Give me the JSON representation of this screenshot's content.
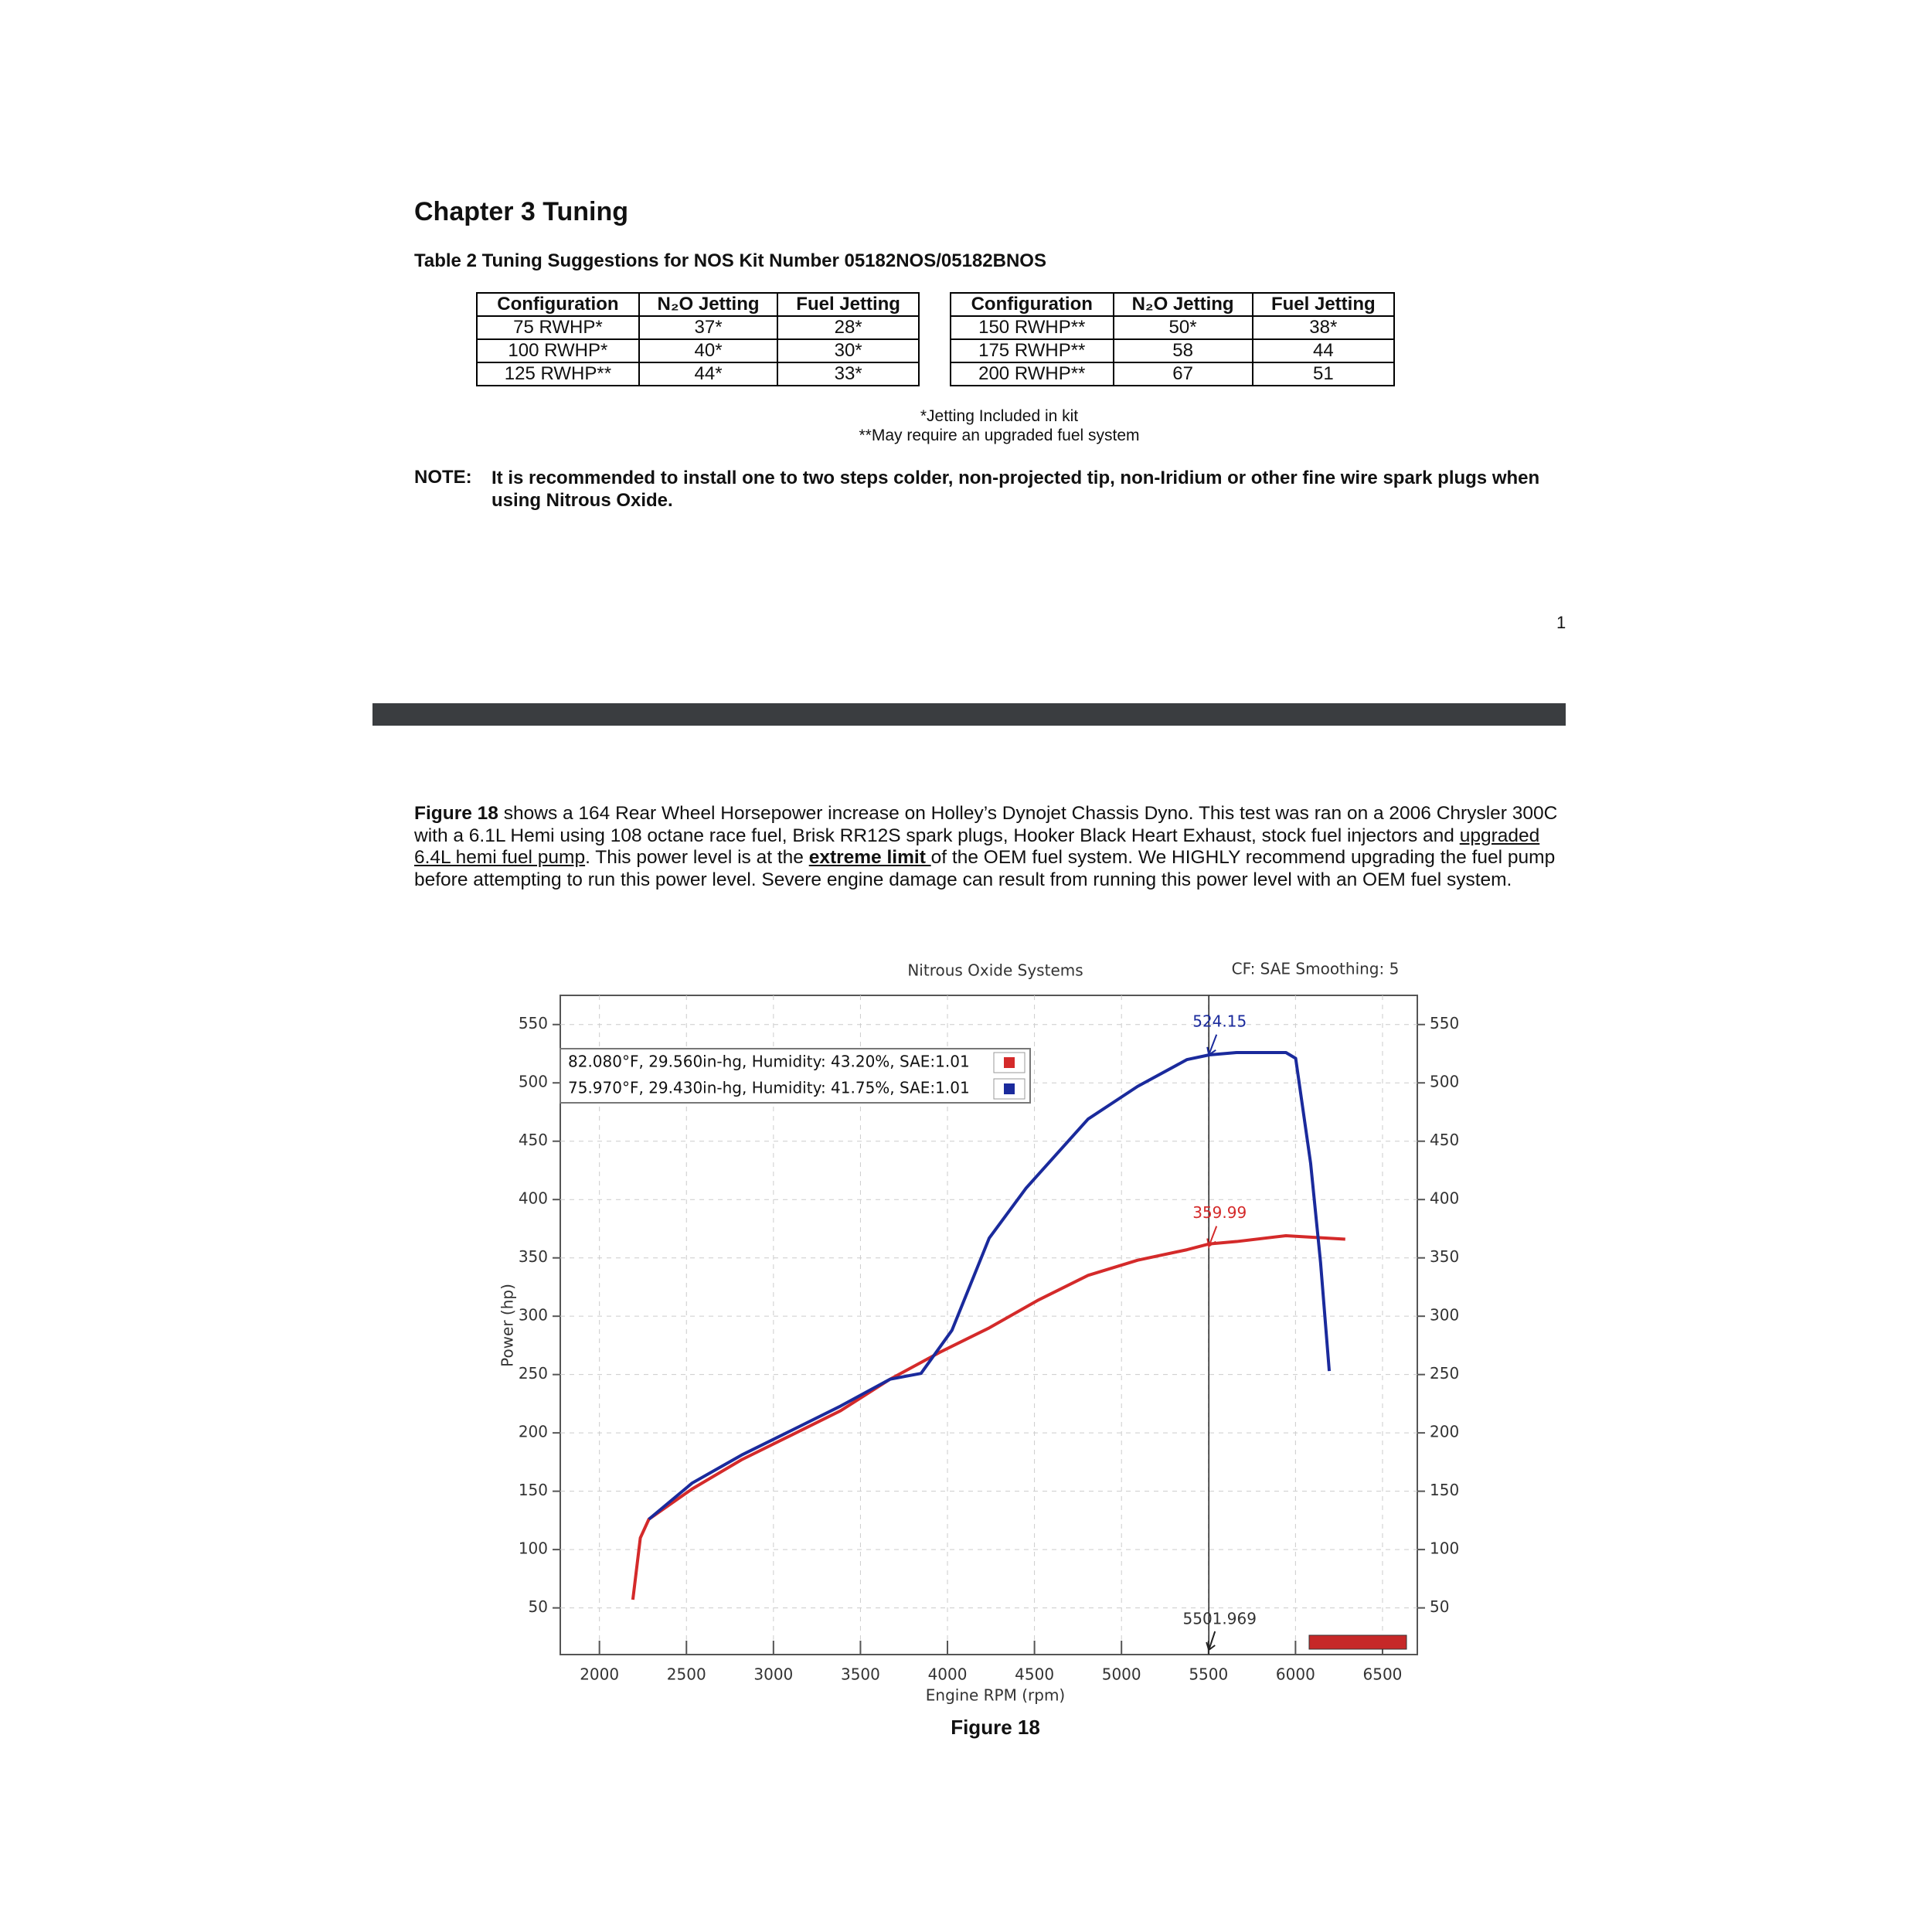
{
  "header": {
    "title": "Chapter 3 Tuning",
    "table_caption": "Table 2 Tuning Suggestions for NOS Kit Number 05182NOS/05182BNOS"
  },
  "tables": [
    {
      "columns": [
        "Configuration",
        "N₂O Jetting",
        "Fuel Jetting"
      ],
      "rows": [
        [
          "75 RWHP*",
          "37*",
          "28*"
        ],
        [
          "100 RWHP*",
          "40*",
          "30*"
        ],
        [
          "125 RWHP**",
          "44*",
          "33*"
        ]
      ]
    },
    {
      "columns": [
        "Configuration",
        "N₂O Jetting",
        "Fuel Jetting"
      ],
      "rows": [
        [
          "150 RWHP**",
          "50*",
          "38*"
        ],
        [
          "175 RWHP**",
          "58",
          "44"
        ],
        [
          "200 RWHP**",
          "67",
          "51"
        ]
      ]
    }
  ],
  "footnotes": [
    "*Jetting Included in kit",
    "**May require an upgraded fuel system"
  ],
  "note": {
    "label": "NOTE:",
    "text": "It is recommended to install one to two steps colder, non-projected tip, non-Iridium or other fine wire spark plugs when using Nitrous Oxide."
  },
  "page_number": "1",
  "intro": {
    "parts": [
      "Figure 18",
      " shows a 164 Rear Wheel Horsepower increase on Holley’s Dynojet Chassis Dyno. This test was ran on a 2006 Chrysler 300C with a 6.1L Hemi using 108 octane race fuel, Brisk RR12S spark plugs, Hooker Black Heart Exhaust, stock fuel injectors and ",
      "upgraded 6.4L hemi fuel pump",
      ". This power level is at the ",
      "extreme limit ",
      "of the OEM fuel system. We HIGHLY recommend upgrading the fuel pump before attempting to run this power level. Severe engine damage can result from running this power level with an OEM fuel system."
    ]
  },
  "figure_caption": "Figure 18",
  "chart_data": {
    "type": "line",
    "title": "Nitrous Oxide Systems",
    "subtitle": "CF: SAE Smoothing: 5",
    "x_label": "Engine RPM (rpm)",
    "y_label": "Power (hp)",
    "xlim": [
      1775,
      6700
    ],
    "ylim": [
      10,
      575
    ],
    "xticks": [
      2000,
      2500,
      3000,
      3500,
      4000,
      4500,
      5000,
      5500,
      6000,
      6500
    ],
    "yticks": [
      50,
      100,
      150,
      200,
      250,
      300,
      350,
      400,
      450,
      500,
      550
    ],
    "grid": true,
    "legend": "upper left",
    "cursor_x": 5501.969,
    "series": [
      {
        "name": "82.080°F, 29.560in-hg, Humidity: 43.20%, SAE:1.01",
        "color": "#d42a2a",
        "cursor_value": 359.99,
        "x": [
          2192,
          2235,
          2284,
          2533,
          2817,
          3102,
          3386,
          3670,
          3955,
          4240,
          4524,
          4808,
          5093,
          5377,
          5505,
          5661,
          5945,
          6286
        ],
        "values": [
          57,
          110,
          126,
          152,
          177,
          198,
          219,
          246,
          269,
          290,
          314,
          335,
          348,
          357,
          362,
          364,
          369,
          366
        ]
      },
      {
        "name": "75.970°F, 29.430in-hg, Humidity: 41.75%, SAE:1.01",
        "color": "#1a2a9c",
        "cursor_value": 524.15,
        "x": [
          2284,
          2533,
          2817,
          3102,
          3386,
          3670,
          3848,
          4026,
          4240,
          4453,
          4808,
          5093,
          5377,
          5505,
          5661,
          5945,
          6001,
          6087,
          6144,
          6194
        ],
        "values": [
          126,
          157,
          181,
          202,
          223,
          246,
          251,
          288,
          367,
          410,
          469,
          497,
          520,
          524,
          526,
          526,
          521,
          431,
          346,
          253
        ]
      }
    ]
  }
}
